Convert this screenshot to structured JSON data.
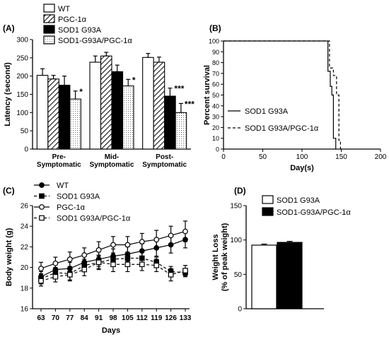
{
  "chart_data": [
    {
      "panel": "(A)",
      "type": "bar",
      "ylabel": "Latency (second)",
      "ylim": [
        0,
        300
      ],
      "yticks": [
        0,
        50,
        100,
        150,
        200,
        250,
        300
      ],
      "categories": [
        "Pre-\nSymptomatic",
        "Mid-\nSymptomatic",
        "Post-\nSymptomatic"
      ],
      "series": [
        {
          "name": "WT",
          "pattern": "white",
          "values": [
            202,
            238,
            251
          ],
          "errors": [
            18,
            17,
            11
          ]
        },
        {
          "name": "PGC-1α",
          "pattern": "hatch",
          "values": [
            192,
            255,
            238
          ],
          "errors": [
            10,
            10,
            14
          ]
        },
        {
          "name": "SOD1 G93A",
          "pattern": "black",
          "values": [
            175,
            212,
            145
          ],
          "errors": [
            25,
            18,
            22
          ]
        },
        {
          "name": "SOD1-G93A/PGC-1α",
          "pattern": "dots",
          "values": [
            137,
            173,
            100
          ],
          "errors": [
            22,
            18,
            25
          ]
        }
      ],
      "annotations": [
        {
          "category": 0,
          "series": 3,
          "text": "*"
        },
        {
          "category": 1,
          "series": 3,
          "text": "*"
        },
        {
          "category": 2,
          "series": 2,
          "text": "***"
        },
        {
          "category": 2,
          "series": 3,
          "text": "***"
        }
      ]
    },
    {
      "panel": "(B)",
      "type": "line",
      "xlabel": "Day(s)",
      "ylabel": "Percent survival",
      "xlim": [
        0,
        200
      ],
      "ylim": [
        0,
        100
      ],
      "xticks": [
        0,
        50,
        100,
        150,
        200
      ],
      "yticks": [
        0,
        10,
        20,
        30,
        40,
        50,
        60,
        70,
        80,
        90,
        100
      ],
      "series": [
        {
          "name": "SOD1 G93A",
          "style": "solid",
          "x": [
            0,
            133,
            133,
            136,
            136,
            138,
            138,
            140,
            140,
            143,
            143
          ],
          "y": [
            100,
            100,
            72,
            72,
            58,
            58,
            50,
            50,
            10,
            10,
            0
          ]
        },
        {
          "name": "SOD1 G93A/PGC-1α",
          "style": "dashed",
          "x": [
            0,
            135,
            135,
            140,
            140,
            144,
            144,
            147,
            147,
            149,
            149
          ],
          "y": [
            100,
            100,
            75,
            75,
            68,
            68,
            50,
            50,
            8,
            8,
            0
          ]
        }
      ]
    },
    {
      "panel": "(C)",
      "type": "line",
      "xlabel": "Days",
      "ylabel": "Body weight (g)",
      "ylim": [
        16,
        26
      ],
      "yticks": [
        16,
        18,
        20,
        22,
        24,
        26
      ],
      "categories": [
        "63",
        "70",
        "77",
        "84",
        "91",
        "98",
        "105",
        "112",
        "119",
        "126",
        "133"
      ],
      "series": [
        {
          "name": "WT",
          "marker": "filled-circle",
          "style": "solid",
          "values": [
            19.1,
            19.8,
            19.9,
            20.5,
            20.8,
            21.1,
            21.3,
            21.6,
            21.9,
            22.2,
            22.7
          ],
          "errors": [
            0.5,
            0.6,
            0.6,
            0.6,
            0.7,
            0.7,
            0.7,
            0.7,
            0.8,
            0.8,
            0.8
          ]
        },
        {
          "name": "SOD1 G93A",
          "marker": "filled-square",
          "style": "dashed",
          "values": [
            18.9,
            19.5,
            19.4,
            20.2,
            20.5,
            20.8,
            20.9,
            20.9,
            20.5,
            19.6,
            19.5
          ],
          "errors": [
            0.5,
            0.5,
            0.6,
            0.6,
            0.6,
            0.6,
            0.6,
            0.6,
            0.5,
            0.5,
            0.4
          ]
        },
        {
          "name": "PGC-1α",
          "marker": "open-circle",
          "style": "solid",
          "values": [
            19.9,
            20.4,
            20.8,
            21.2,
            21.7,
            22.2,
            22.2,
            22.5,
            22.7,
            23.1,
            23.5
          ],
          "errors": [
            0.6,
            0.6,
            0.7,
            0.7,
            0.8,
            0.8,
            0.8,
            0.8,
            0.9,
            0.9,
            1.0
          ]
        },
        {
          "name": "SOD1 G93A/PGC-1α",
          "marker": "open-square",
          "style": "dashed",
          "values": [
            18.7,
            19.1,
            19.3,
            19.8,
            20.5,
            20.3,
            20.3,
            20.3,
            20.2,
            19.3,
            19.7
          ],
          "errors": [
            0.5,
            0.5,
            0.6,
            0.6,
            0.7,
            0.7,
            0.7,
            0.6,
            0.6,
            0.6,
            0.5
          ]
        }
      ]
    },
    {
      "panel": "(D)",
      "type": "bar",
      "ylabel": "Weight Loss\n(% of peak weight)",
      "ylim": [
        0,
        150
      ],
      "yticks": [
        0,
        50,
        100,
        150
      ],
      "series": [
        {
          "name": "SOD1 G93A",
          "pattern": "white",
          "value": 92.5,
          "error": 1.5
        },
        {
          "name": "SOD1-G93A/PGC-1α",
          "pattern": "black",
          "value": 96.5,
          "error": 1.5
        }
      ]
    }
  ]
}
